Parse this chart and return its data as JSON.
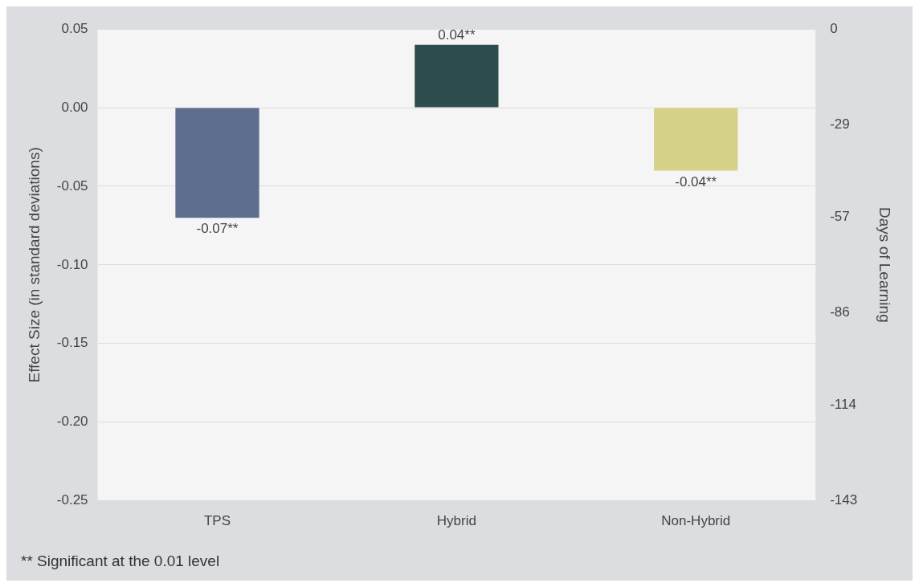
{
  "chart_data": {
    "type": "bar",
    "ylabel": "Effect Size (in standard deviations)",
    "y2label": "Days of Learning",
    "categories": [
      "TPS",
      "Hybrid",
      "Non-Hybrid"
    ],
    "values": [
      -0.07,
      0.04,
      -0.04
    ],
    "colors": [
      "#5d6e8e",
      "#2d4c4c",
      "#d5d188"
    ],
    "value_labels": [
      "-0.07**",
      "0.04**",
      "-0.04**"
    ],
    "ylim": [
      -0.25,
      0.05
    ],
    "yticks": [
      {
        "value": 0.05,
        "label": "0.05"
      },
      {
        "value": 0,
        "label": "0.00"
      },
      {
        "value": -0.05,
        "label": "-0.05"
      },
      {
        "value": -0.1,
        "label": "-0.10"
      },
      {
        "value": -0.15,
        "label": "-0.15"
      },
      {
        "value": -0.2,
        "label": "-0.20"
      },
      {
        "value": -0.25,
        "label": "-0.25"
      }
    ],
    "y2lim": [
      -143,
      0
    ],
    "y2ticks": [
      0,
      -29,
      -57,
      -86,
      -114,
      -143
    ],
    "grid": "y",
    "legend": false,
    "annotations": [
      "** Significant at the 0.01 level"
    ]
  }
}
